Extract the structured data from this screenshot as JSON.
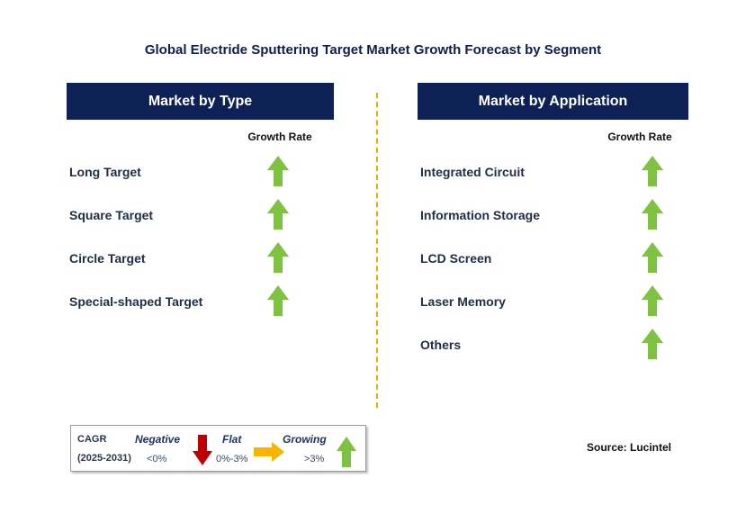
{
  "title": "Global Electride Sputtering Target Market Growth Forecast by Segment",
  "colors": {
    "header_bg": "#0d2157",
    "growing": "#7fc241",
    "negative": "#c00000",
    "flat": "#f7b500",
    "divider": "#f2a900"
  },
  "left_panel": {
    "header": "Market by Type",
    "column_header": "Growth Rate",
    "rows": [
      {
        "label": "Long Target",
        "trend": "growing"
      },
      {
        "label": "Square Target",
        "trend": "growing"
      },
      {
        "label": "Circle Target",
        "trend": "growing"
      },
      {
        "label": "Special-shaped Target",
        "trend": "growing"
      }
    ]
  },
  "right_panel": {
    "header": "Market by Application",
    "column_header": "Growth Rate",
    "rows": [
      {
        "label": "Integrated Circuit",
        "trend": "growing"
      },
      {
        "label": "Information Storage",
        "trend": "growing"
      },
      {
        "label": "LCD Screen",
        "trend": "growing"
      },
      {
        "label": "Laser Memory",
        "trend": "growing"
      },
      {
        "label": "Others",
        "trend": "growing"
      }
    ]
  },
  "legend": {
    "cagr": "CAGR",
    "period": "(2025-2031)",
    "negative_label": "Negative",
    "negative_range": "<0%",
    "flat_label": "Flat",
    "flat_range": "0%-3%",
    "growing_label": "Growing",
    "growing_range": ">3%"
  },
  "source": "Source: Lucintel",
  "chart_data": {
    "type": "table",
    "title": "Global Electride Sputtering Target Market Growth Forecast by Segment",
    "tables": [
      {
        "header": "Market by Type",
        "column": "Growth Rate",
        "rows": [
          [
            "Long Target",
            "growing"
          ],
          [
            "Square Target",
            "growing"
          ],
          [
            "Circle Target",
            "growing"
          ],
          [
            "Special-shaped Target",
            "growing"
          ]
        ]
      },
      {
        "header": "Market by Application",
        "column": "Growth Rate",
        "rows": [
          [
            "Integrated Circuit",
            "growing"
          ],
          [
            "Information Storage",
            "growing"
          ],
          [
            "LCD Screen",
            "growing"
          ],
          [
            "Laser Memory",
            "growing"
          ],
          [
            "Others",
            "growing"
          ]
        ]
      }
    ]
  }
}
